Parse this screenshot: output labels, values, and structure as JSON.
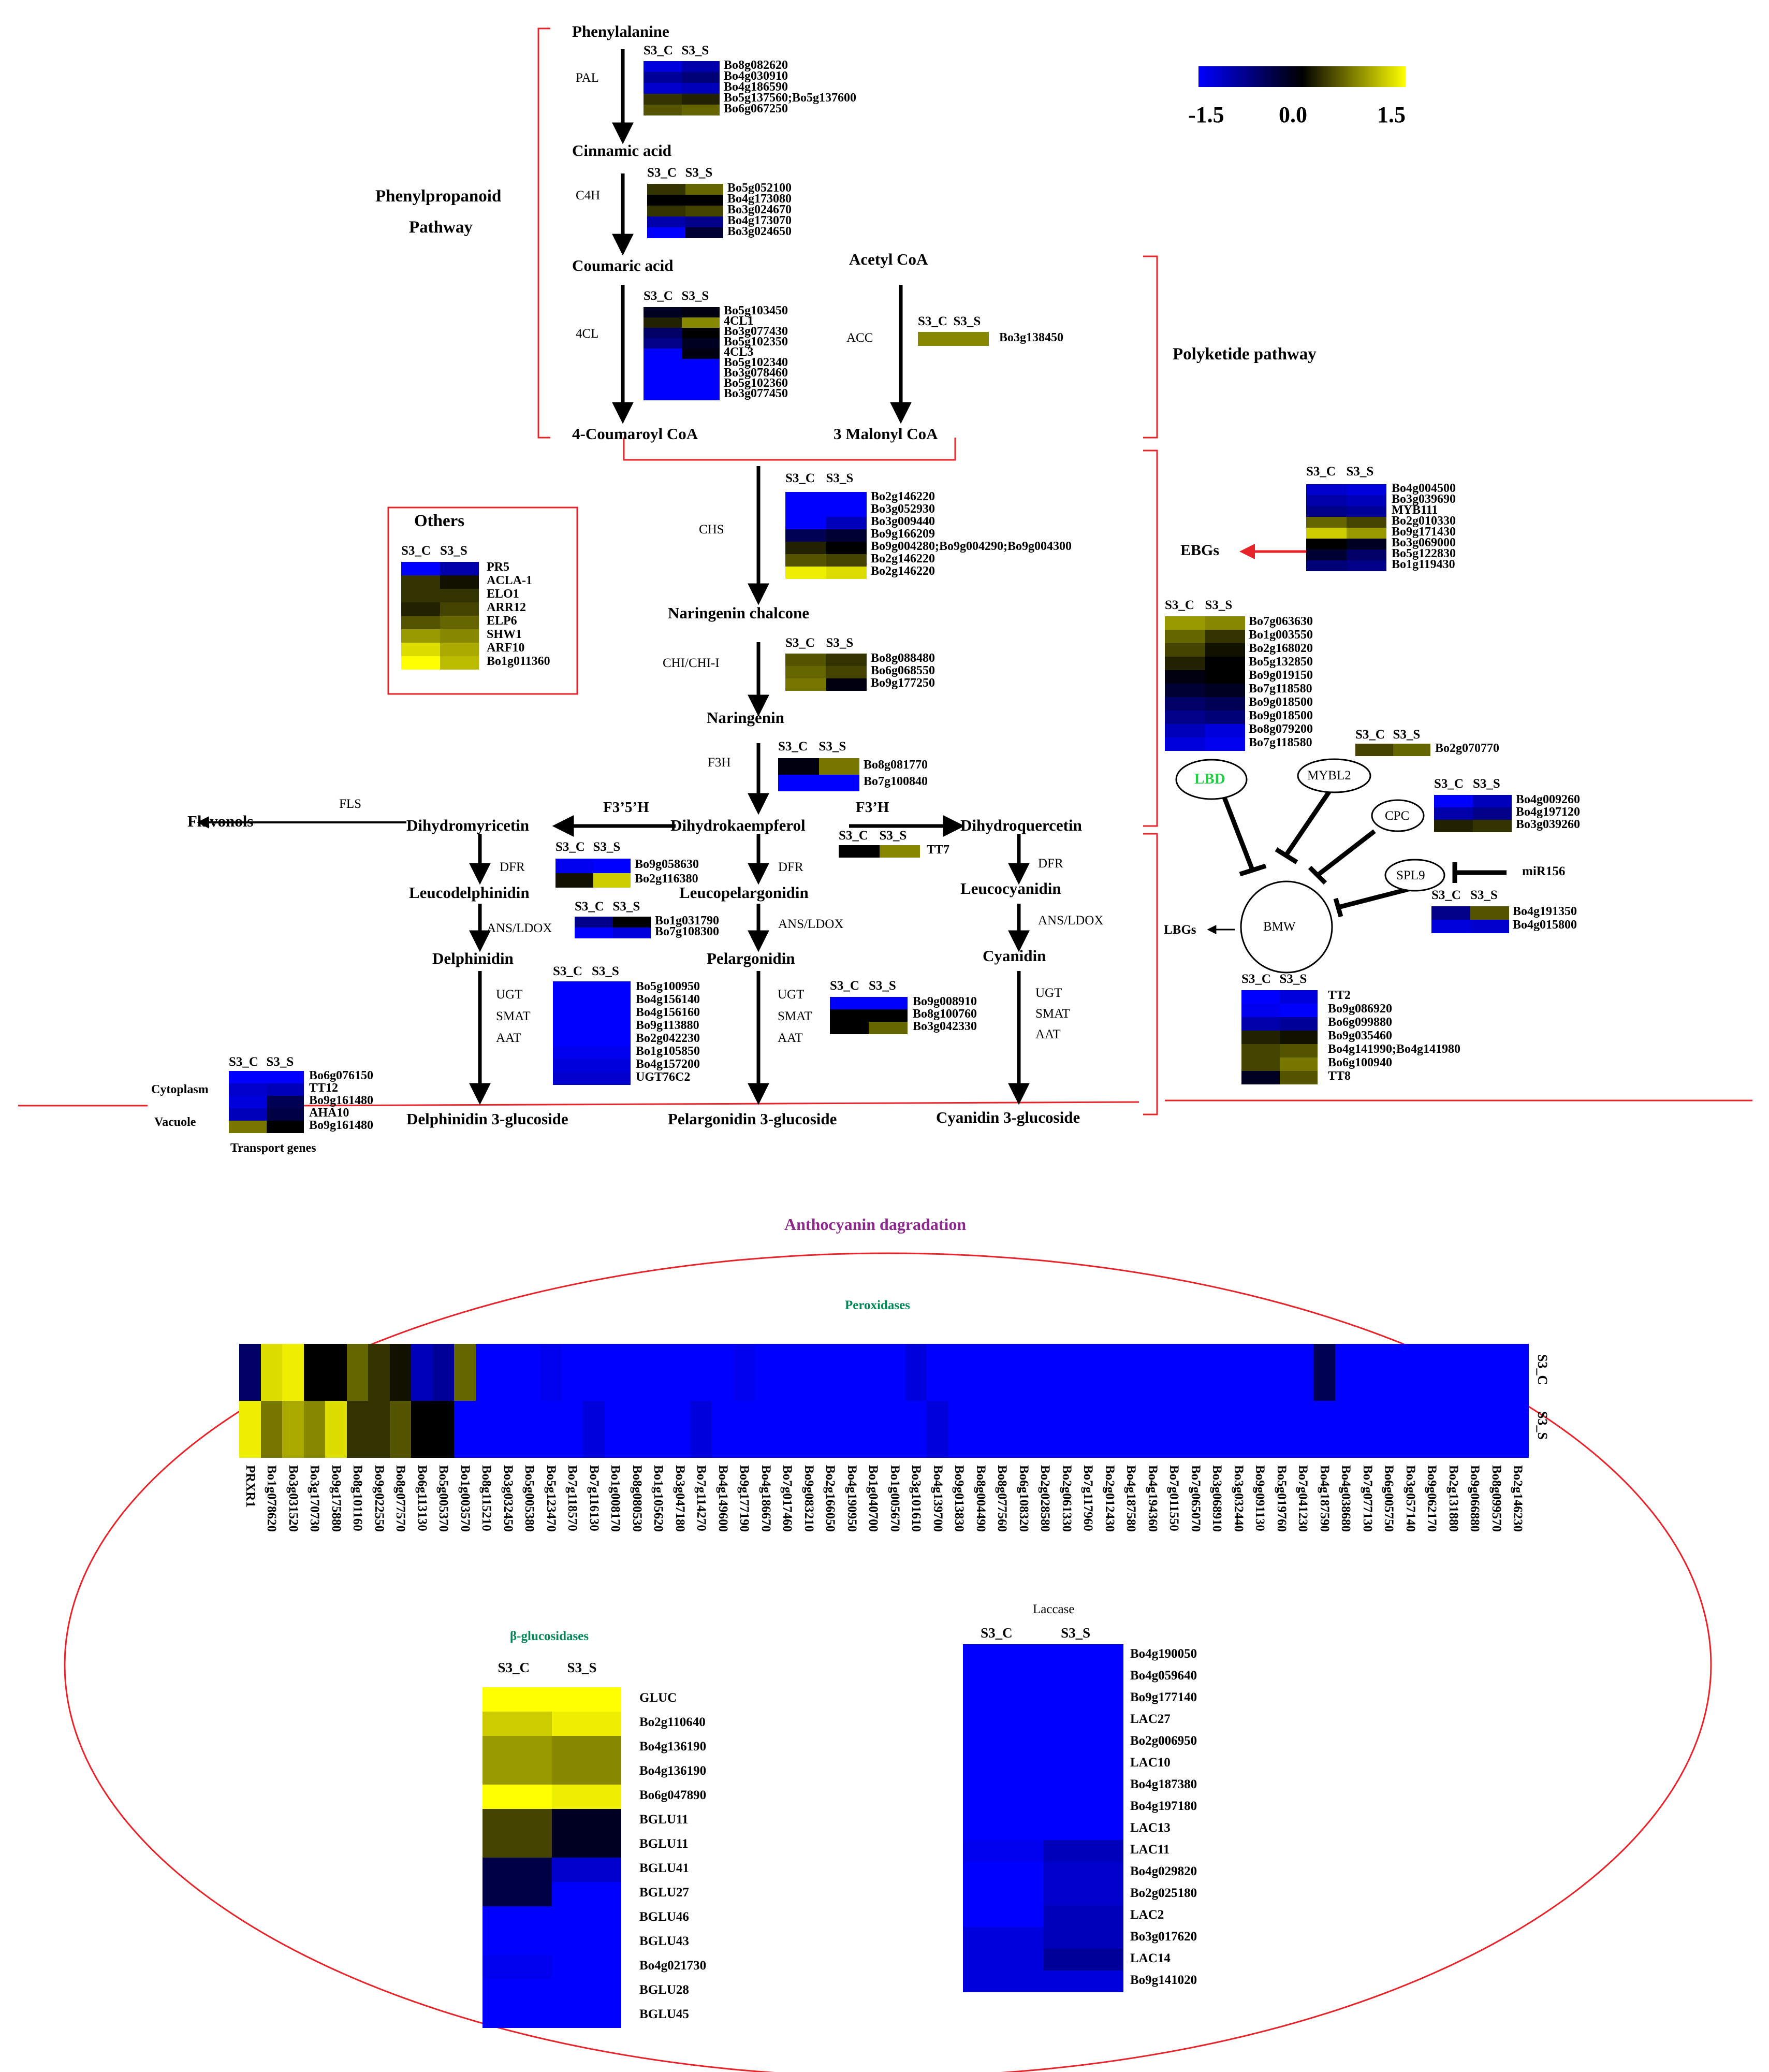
{
  "colors": {
    "low": "#0000ff",
    "mid": "#000000",
    "high": "#ffff00",
    "frame": "#e8232a"
  },
  "scale": {
    "min_label": "-1.5",
    "mid_label": "0.0",
    "max_label": "1.5"
  },
  "cols": {
    "c": "S3_C",
    "s": "S3_S"
  },
  "titles": {
    "phenylpropanoid_1": "Phenylpropanoid",
    "phenylpropanoid_2": "Pathway",
    "polyketide": "Polyketide pathway",
    "others": "Others",
    "degradation": "Anthocyanin dagradation",
    "peroxidases": "Peroxidases",
    "bglu": "β-glucosidases",
    "laccase": "Laccase",
    "transport": "Transport genes",
    "cytoplasm": "Cytoplasm",
    "vacuole": "Vacuole"
  },
  "metabolites": {
    "phe": "Phenylalanine",
    "cin": "Cinnamic acid",
    "cou": "Coumaric acid",
    "coa": "4-Coumaroyl CoA",
    "acoa": "Acetyl CoA",
    "mal": "3 Malonyl CoA",
    "nch": "Naringenin chalcone",
    "nar": "Naringenin",
    "dhk": "Dihydrokaempferol",
    "dhm": "Dihydromyricetin",
    "dhq": "Dihydroquercetin",
    "flav": "Flavonols",
    "ldel": "Leucodelphinidin",
    "lpel": "Leucopelargonidin",
    "lcya": "Leucocyanidin",
    "del": "Delphinidin",
    "pel": "Pelargonidin",
    "cya": "Cyanidin",
    "del3g": "Delphinidin 3-glucoside",
    "pel3g": "Pelargonidin 3-glucoside",
    "cya3g": "Cyanidin 3-glucoside",
    "ebgs": "EBGs",
    "lbgs": "LBGs"
  },
  "enzymes": {
    "pal": "PAL",
    "c4h": "C4H",
    "cl4": "4CL",
    "acc": "ACC",
    "chs": "CHS",
    "chi": "CHI/CHI-I",
    "f3h": "F3H",
    "f35h": "F3’5’H",
    "f3ph": "F3’H",
    "fls": "FLS",
    "dfr": "DFR",
    "ans": "ANS/LDOX",
    "ugt": "UGT",
    "smat": "SMAT",
    "aat": "AAT"
  },
  "regulators": {
    "lbd": "LBD",
    "mybl2": "MYBL2",
    "cpc": "CPC",
    "spl9": "SPL9",
    "mir156": "miR156",
    "bmw": "BMW"
  },
  "heatmaps": [
    {
      "id": "pal",
      "genes": [
        "Bo8g082620",
        "Bo4g030910",
        "Bo4g186590",
        "Bo5g137560;Bo5g137600",
        "Bo6g067250"
      ],
      "c": [
        -1.3,
        -0.9,
        -1.2,
        0.3,
        0.5
      ],
      "s": [
        -1.0,
        -0.7,
        -1.1,
        0.2,
        0.6
      ]
    },
    {
      "id": "c4h",
      "genes": [
        "Bo5g052100",
        "Bo4g173080",
        "Bo3g024670",
        "Bo4g173070",
        "Bo3g024650"
      ],
      "c": [
        0.3,
        0.0,
        0.3,
        -1.0,
        -1.5
      ],
      "s": [
        0.6,
        0.0,
        0.4,
        -0.8,
        -0.3
      ]
    },
    {
      "id": "cl4",
      "genes": [
        "Bo5g103450",
        "4CL1",
        "Bo3g077430",
        "Bo5g102350",
        "4CL3",
        "Bo5g102340",
        "Bo3g078460",
        "Bo5g102360",
        "Bo3g077450"
      ],
      "c": [
        -0.2,
        0.2,
        -0.6,
        -0.8,
        -1.5,
        -1.5,
        -1.5,
        -1.5,
        -1.5
      ],
      "s": [
        -0.1,
        0.8,
        0.0,
        -0.2,
        -0.1,
        -1.5,
        -1.5,
        -1.5,
        -1.5
      ]
    },
    {
      "id": "acc",
      "genes": [
        "Bo3g138450"
      ],
      "c": [
        0.8
      ],
      "s": [
        0.8
      ]
    },
    {
      "id": "chs",
      "genes": [
        "Bo2g146220",
        "Bo3g052930",
        "Bo3g009440",
        "Bo9g166209",
        "Bo9g004280;Bo9g004290;Bo9g004300",
        "Bo2g146220",
        "Bo2g146220"
      ],
      "c": [
        -1.5,
        -1.5,
        -1.5,
        -0.5,
        0.2,
        0.5,
        1.4
      ],
      "s": [
        -1.5,
        -1.5,
        -1.1,
        -0.3,
        0.0,
        0.4,
        1.3
      ]
    },
    {
      "id": "chi",
      "genes": [
        "Bo8g088480",
        "Bo6g068550",
        "Bo9g177250"
      ],
      "c": [
        0.5,
        0.6,
        0.7
      ],
      "s": [
        0.3,
        0.4,
        -0.1
      ]
    },
    {
      "id": "f3h",
      "genes": [
        "Bo8g081770",
        "Bo7g100840"
      ],
      "c": [
        -0.1,
        -1.5
      ],
      "s": [
        0.7,
        -1.5
      ]
    },
    {
      "id": "tt7",
      "genes": [
        "TT7"
      ],
      "c": [
        0.0
      ],
      "s": [
        0.8
      ]
    },
    {
      "id": "dfr",
      "genes": [
        "Bo9g058630",
        "Bo2g116380"
      ],
      "c": [
        -1.4,
        0.1
      ],
      "s": [
        -1.5,
        1.2
      ]
    },
    {
      "id": "ans",
      "genes": [
        "Bo1g031790",
        "Bo7g108300"
      ],
      "c": [
        -0.8,
        -1.5
      ],
      "s": [
        0.0,
        -1.3
      ]
    },
    {
      "id": "ugt1",
      "genes": [
        "Bo5g100950",
        "Bo4g156140",
        "Bo4g156160",
        "Bo9g113880",
        "Bo2g042230",
        "Bo1g105850",
        "Bo4g157200",
        "UGT76C2"
      ],
      "c": [
        -1.5,
        -1.5,
        -1.5,
        -1.5,
        -1.5,
        -1.4,
        -1.3,
        -1.2
      ],
      "s": [
        -1.5,
        -1.5,
        -1.5,
        -1.5,
        -1.5,
        -1.4,
        -1.3,
        -1.2
      ]
    },
    {
      "id": "ugt2",
      "genes": [
        "Bo9g008910",
        "Bo8g100760",
        "Bo3g042330"
      ],
      "c": [
        -1.5,
        0.0,
        0.0
      ],
      "s": [
        -1.5,
        0.0,
        0.6
      ]
    },
    {
      "id": "transport",
      "genes": [
        "Bo6g076150",
        "TT12",
        "Bo9g161480",
        "AHA10",
        "Bo9g161480"
      ],
      "c": [
        -1.5,
        -1.2,
        -1.3,
        -1.1,
        0.7
      ],
      "s": [
        -1.5,
        -1.1,
        -0.5,
        -0.4,
        0.0
      ]
    },
    {
      "id": "others",
      "genes": [
        "PR5",
        "ACLA-1",
        "ELO1",
        "ARR12",
        "ELP6",
        "SHW1",
        "ARF10",
        "Bo1g011360"
      ],
      "c": [
        -1.5,
        0.3,
        0.3,
        0.2,
        0.5,
        0.9,
        1.3,
        1.5
      ],
      "s": [
        -1.0,
        0.1,
        0.3,
        0.4,
        0.6,
        0.8,
        1.0,
        1.1
      ]
    },
    {
      "id": "ebg",
      "genes": [
        "Bo4g004500",
        "Bo3g039690",
        "MYB111",
        "Bo2g010330",
        "Bo9g171430",
        "Bo3g069000",
        "Bo5g122830",
        "Bo1g119430"
      ],
      "c": [
        -1.2,
        -1.0,
        -0.8,
        0.6,
        1.2,
        0.0,
        -0.3,
        -0.7
      ],
      "s": [
        -1.3,
        -1.1,
        -0.9,
        0.4,
        0.9,
        -0.2,
        -0.6,
        -0.8
      ]
    },
    {
      "id": "lbd",
      "genes": [
        "Bo7g063630",
        "Bo1g003550",
        "Bo2g168020",
        "Bo5g132850",
        "Bo9g019150",
        "Bo7g118580",
        "Bo9g018500",
        "Bo9g018500",
        "Bo8g079200",
        "Bo7g118580"
      ],
      "c": [
        0.9,
        0.6,
        0.4,
        0.2,
        -0.1,
        -0.3,
        -0.6,
        -0.8,
        -1.1,
        -1.3
      ],
      "s": [
        0.8,
        0.3,
        0.1,
        0.0,
        0.0,
        -0.2,
        -0.5,
        -0.7,
        -1.3,
        -1.4
      ]
    },
    {
      "id": "mybl2",
      "genes": [
        "Bo2g070770"
      ],
      "c": [
        0.4
      ],
      "s": [
        0.6
      ]
    },
    {
      "id": "cpc",
      "genes": [
        "Bo4g009260",
        "Bo4g197120",
        "Bo3g039260"
      ],
      "c": [
        -1.5,
        -1.0,
        0.2
      ],
      "s": [
        -1.1,
        -0.8,
        0.3
      ]
    },
    {
      "id": "spl9",
      "genes": [
        "Bo4g191350",
        "Bo4g015800"
      ],
      "c": [
        -0.8,
        -1.3
      ],
      "s": [
        0.5,
        -1.2
      ]
    },
    {
      "id": "lbg",
      "genes": [
        "TT2",
        "Bo9g086920",
        "Bo6g099880",
        "Bo9g035460",
        "Bo4g141990;Bo4g141980",
        "Bo6g100940",
        "TT8"
      ],
      "c": [
        -1.5,
        -1.4,
        -1.0,
        0.2,
        0.4,
        0.4,
        -0.2
      ],
      "s": [
        -1.3,
        -1.5,
        -0.9,
        0.1,
        0.5,
        0.7,
        0.5
      ]
    },
    {
      "id": "bglu",
      "genes": [
        "GLUC",
        "Bo2g110640",
        "Bo4g136190",
        "Bo4g136190",
        "Bo6g047890",
        "BGLU11",
        "BGLU11",
        "BGLU41",
        "BGLU27",
        "BGLU46",
        "BGLU43",
        "Bo4g021730",
        "BGLU28",
        "BGLU45"
      ],
      "c": [
        1.5,
        1.2,
        0.9,
        0.9,
        1.5,
        0.4,
        0.4,
        -0.4,
        -0.4,
        -1.5,
        -1.5,
        -1.4,
        -1.5,
        -1.5
      ],
      "s": [
        1.5,
        1.4,
        0.8,
        0.8,
        1.4,
        -0.2,
        -0.2,
        -1.2,
        -1.5,
        -1.5,
        -1.5,
        -1.5,
        -1.5,
        -1.5
      ]
    },
    {
      "id": "laccase",
      "genes": [
        "Bo4g190050",
        "Bo4g059640",
        "Bo9g177140",
        "LAC27",
        "Bo2g006950",
        "LAC10",
        "Bo4g187380",
        "Bo4g197180",
        "LAC13",
        "LAC11",
        "Bo4g029820",
        "Bo2g025180",
        "LAC2",
        "Bo3g017620",
        "LAC14",
        "Bo9g141020"
      ],
      "c": [
        -1.5,
        -1.5,
        -1.5,
        -1.5,
        -1.5,
        -1.5,
        -1.5,
        -1.5,
        -1.5,
        -1.4,
        -1.5,
        -1.5,
        -1.5,
        -1.3,
        -1.3,
        -1.3
      ],
      "s": [
        -1.5,
        -1.5,
        -1.5,
        -1.5,
        -1.5,
        -1.5,
        -1.5,
        -1.5,
        -1.5,
        -1.1,
        -1.2,
        -1.2,
        -1.1,
        -1.1,
        -0.9,
        -1.3
      ]
    }
  ],
  "peroxidases": {
    "genes": [
      "PRXR1",
      "Bo1g078620",
      "Bo3g031520",
      "Bo3g170730",
      "Bo9g175880",
      "Bo8g101160",
      "Bo9g022550",
      "Bo8g077570",
      "Bo6g113130",
      "Bo5g005370",
      "Bo1g003570",
      "Bo8g115210",
      "Bo3g032450",
      "Bo5g005380",
      "Bo5g123470",
      "Bo7g118570",
      "Bo7g116130",
      "Bo1g008170",
      "Bo8g080530",
      "Bo1g105620",
      "Bo3g047180",
      "Bo7g114270",
      "Bo4g149600",
      "Bo9g177190",
      "Bo4g186670",
      "Bo7g017460",
      "Bo9g083210",
      "Bo2g166050",
      "Bo4g190950",
      "Bo1g040700",
      "Bo1g005670",
      "Bo3g101610",
      "Bo4g139700",
      "Bo9g013830",
      "Bo8g004490",
      "Bo8g077560",
      "Bo6g108320",
      "Bo2g028580",
      "Bo2g061330",
      "Bo7g117960",
      "Bo2g012430",
      "Bo4g187580",
      "Bo4g194360",
      "Bo7g011550",
      "Bo7g065070",
      "Bo3g068910",
      "Bo3g032440",
      "Bo9g091130",
      "Bo5g019760",
      "Bo7g041230",
      "Bo4g187590",
      "Bo4g038680",
      "Bo7g077130",
      "Bo6g005750",
      "Bo3g057140",
      "Bo9g062170",
      "Bo2g131880",
      "Bo9g066880",
      "Bo8g099570",
      "Bo2g146230"
    ],
    "c": [
      -0.6,
      1.3,
      1.4,
      0.0,
      0.0,
      0.6,
      0.3,
      0.1,
      -1.1,
      -0.9,
      0.6,
      -1.5,
      -1.5,
      -1.5,
      -1.4,
      -1.5,
      -1.5,
      -1.5,
      -1.5,
      -1.5,
      -1.5,
      -1.5,
      -1.5,
      -1.4,
      -1.5,
      -1.5,
      -1.5,
      -1.5,
      -1.5,
      -1.5,
      -1.5,
      -1.3,
      -1.5,
      -1.5,
      -1.5,
      -1.5,
      -1.5,
      -1.5,
      -1.5,
      -1.5,
      -1.5,
      -1.5,
      -1.5,
      -1.5,
      -1.5,
      -1.5,
      -1.5,
      -1.5,
      -1.5,
      -1.5,
      -0.5,
      -1.5,
      -1.5,
      -1.5,
      -1.5,
      -1.5,
      -1.5,
      -1.5,
      -1.5,
      -1.5
    ],
    "s": [
      1.4,
      0.7,
      1.0,
      0.8,
      1.3,
      0.3,
      0.3,
      0.5,
      0.0,
      0.0,
      -1.5,
      -1.5,
      -1.5,
      -1.5,
      -1.5,
      -1.5,
      -1.3,
      -1.5,
      -1.5,
      -1.5,
      -1.5,
      -1.3,
      -1.5,
      -1.5,
      -1.5,
      -1.5,
      -1.5,
      -1.5,
      -1.5,
      -1.5,
      -1.5,
      -1.5,
      -1.3,
      -1.5,
      -1.5,
      -1.5,
      -1.5,
      -1.5,
      -1.5,
      -1.5,
      -1.5,
      -1.5,
      -1.5,
      -1.5,
      -1.5,
      -1.5,
      -1.5,
      -1.5,
      -1.5,
      -1.5,
      -1.5,
      -1.5,
      -1.5,
      -1.5,
      -1.5,
      -1.5,
      -1.5,
      -1.5,
      -1.5,
      -1.5
    ]
  }
}
